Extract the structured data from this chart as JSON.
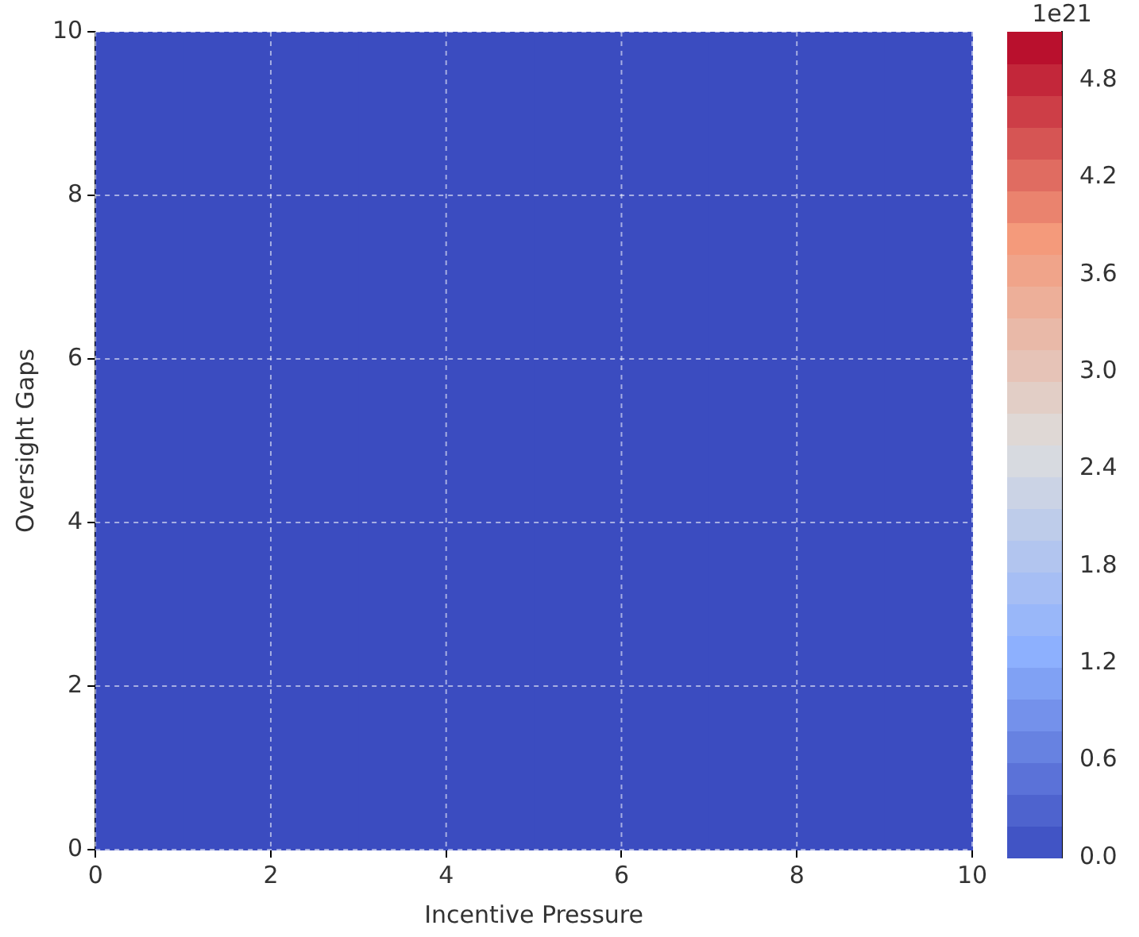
{
  "chart_data": {
    "type": "heatmap",
    "xlabel": "Incentive Pressure",
    "ylabel": "Oversight Gaps",
    "xlim": [
      0,
      10
    ],
    "xticks": [
      0,
      2,
      4,
      6,
      8,
      10
    ],
    "ylim": [
      0,
      10
    ],
    "yticks": [
      0,
      2,
      4,
      6,
      8,
      10
    ],
    "cells": [
      [
        0,
        0,
        0,
        0,
        0,
        0,
        0,
        0,
        0,
        0
      ],
      [
        0,
        0,
        0,
        0,
        0,
        0,
        0,
        0,
        0,
        0
      ],
      [
        0,
        0,
        0,
        0,
        0,
        0,
        0,
        0,
        0,
        0
      ],
      [
        0,
        0,
        0,
        0,
        0,
        0,
        0,
        0,
        0,
        0
      ],
      [
        0,
        0,
        0,
        0,
        0,
        0,
        0,
        0,
        0,
        0
      ],
      [
        0,
        0,
        0,
        0,
        0,
        0,
        0,
        0,
        0,
        0
      ],
      [
        0,
        0,
        0,
        0,
        0,
        0,
        0,
        0,
        0,
        0
      ],
      [
        0,
        0,
        0,
        0,
        0,
        0,
        0,
        0,
        0,
        0
      ],
      [
        0,
        0,
        0,
        0,
        0,
        0,
        0,
        0,
        0,
        0
      ],
      [
        0,
        0,
        0,
        0,
        0,
        0,
        0,
        0,
        0,
        0
      ]
    ],
    "clim": [
      0,
      5.1
    ],
    "clabel": "1e21",
    "cticks": [
      {
        "value": 0,
        "label": "0.0"
      },
      {
        "value": 0.6,
        "label": "0.6"
      },
      {
        "value": 1.2,
        "label": "1.2"
      },
      {
        "value": 1.8,
        "label": "1.8"
      },
      {
        "value": 2.4,
        "label": "2.4"
      },
      {
        "value": 3.0,
        "label": "3.0"
      },
      {
        "value": 3.6,
        "label": "3.6"
      },
      {
        "value": 4.2,
        "label": "4.2"
      },
      {
        "value": 4.8,
        "label": "4.8"
      }
    ],
    "grid": true
  }
}
